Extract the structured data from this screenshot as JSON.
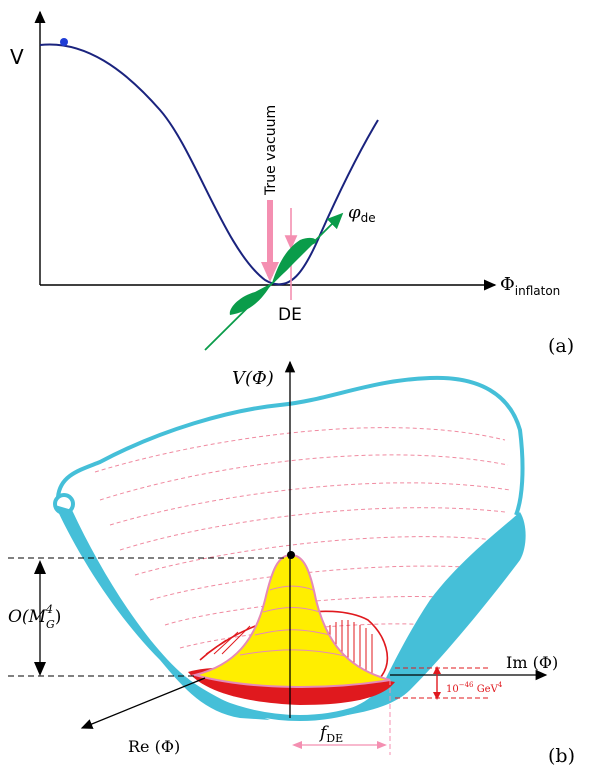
{
  "panel_a": {
    "v_label": "V",
    "true_vacuum_label": "True vacuum",
    "phi_de_label": "φ",
    "phi_de_sub": "de",
    "x_label": "Φ",
    "x_sub": "inflaton",
    "de_label": "DE",
    "panel_tag": "(a)",
    "colors": {
      "curve": "#1a237e",
      "arrow_pink": "#f48fb1",
      "green": "#0a9c4a",
      "dot": "#1f3dd6"
    }
  },
  "panel_b": {
    "y_label": "V(Φ)",
    "im_label": "Im (Φ)",
    "re_label": "Re (Φ)",
    "o_label": "O(M",
    "o_sub": "G",
    "o_sup": "4",
    "o_close": ")",
    "gev_label": "10",
    "gev_exp": "−46",
    "gev_unit": " GeV",
    "gev_unit_sup": "4",
    "f_label": "f",
    "f_sub": "DE",
    "panel_tag": "(b)",
    "colors": {
      "rim": "#45bfd8",
      "peak": "#ffee00",
      "peak_outline": "#e58ab8",
      "red": "#e0191e",
      "dashes": "#f08aa0"
    }
  }
}
